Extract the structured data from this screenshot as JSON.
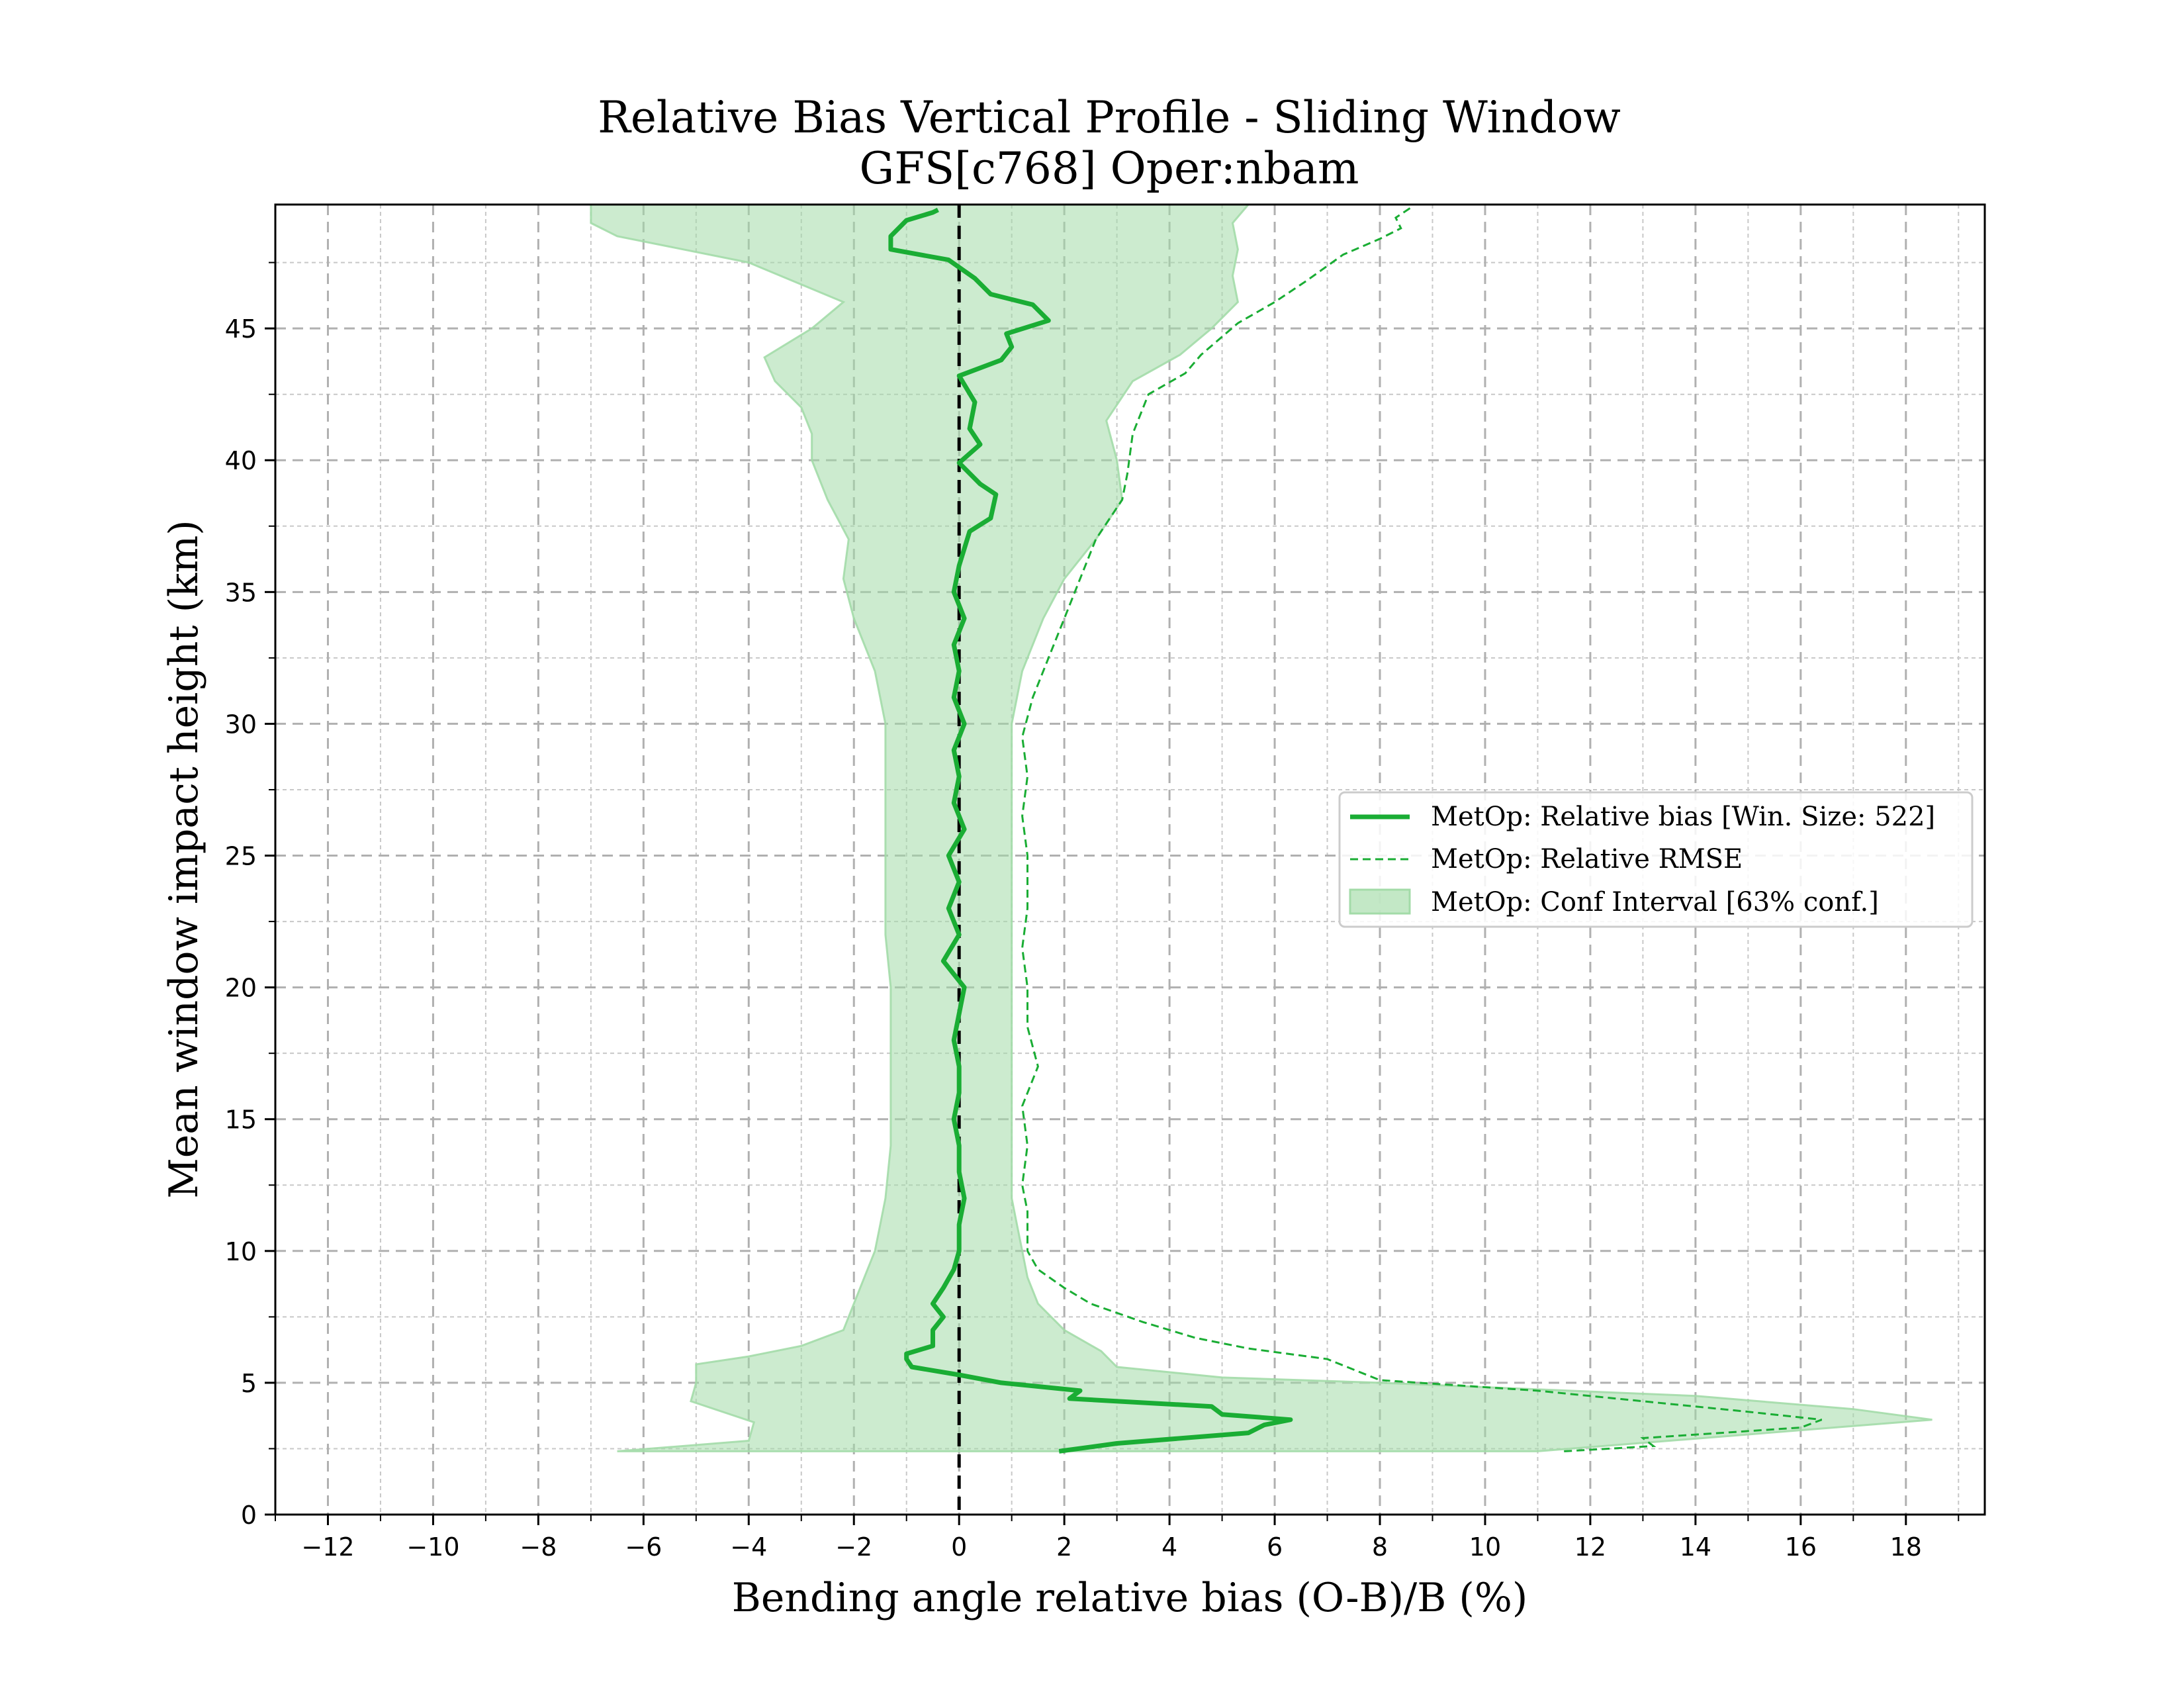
{
  "chart_data": {
    "type": "line",
    "title": "Relative Bias Vertical Profile - Sliding Window",
    "subtitle": "GFS[c768] Oper:nbam",
    "xlabel": "Bending angle relative bias (O-B)/B (%)",
    "ylabel": "Mean window impact height (km)",
    "xlim": [
      -13,
      19.5
    ],
    "ylim": [
      0,
      49.7
    ],
    "x_ticks": [
      -12,
      -10,
      -8,
      -6,
      -4,
      -2,
      0,
      2,
      4,
      6,
      8,
      10,
      12,
      14,
      16,
      18
    ],
    "x_tick_labels": [
      "−12",
      "−10",
      "−8",
      "−6",
      "−4",
      "−2",
      "0",
      "2",
      "4",
      "6",
      "8",
      "10",
      "12",
      "14",
      "16",
      "18"
    ],
    "y_ticks": [
      0,
      5,
      10,
      15,
      20,
      25,
      30,
      35,
      40,
      45
    ],
    "y_tick_labels": [
      "0",
      "5",
      "10",
      "15",
      "20",
      "25",
      "30",
      "35",
      "40",
      "45"
    ],
    "grid": true,
    "legend_position": "center-right",
    "zero_line": 0,
    "colors": {
      "bias": "#1aad34",
      "rmse": "#1aad34",
      "ci_fill": "#a3dba8",
      "zero_line": "#000000",
      "grid_major": "#b0b0b0",
      "grid_minor": "#c8c8c8"
    },
    "series": [
      {
        "name": "MetOp: Relative bias [Win. Size: 522]",
        "style": "solid",
        "points": [
          [
            1.9,
            2.4
          ],
          [
            3.0,
            2.7
          ],
          [
            5.5,
            3.1
          ],
          [
            5.8,
            3.4
          ],
          [
            6.3,
            3.6
          ],
          [
            5.0,
            3.8
          ],
          [
            4.8,
            4.1
          ],
          [
            2.1,
            4.4
          ],
          [
            2.3,
            4.7
          ],
          [
            0.8,
            5.0
          ],
          [
            0.0,
            5.3
          ],
          [
            -0.9,
            5.6
          ],
          [
            -1.0,
            5.9
          ],
          [
            -1.0,
            6.1
          ],
          [
            -0.5,
            6.4
          ],
          [
            -0.5,
            7.0
          ],
          [
            -0.3,
            7.5
          ],
          [
            -0.5,
            8.0
          ],
          [
            -0.3,
            8.6
          ],
          [
            -0.1,
            9.3
          ],
          [
            0.0,
            10.0
          ],
          [
            0.0,
            11.0
          ],
          [
            0.1,
            12.0
          ],
          [
            0.0,
            13.0
          ],
          [
            0.0,
            14.0
          ],
          [
            -0.1,
            15.0
          ],
          [
            0.0,
            16.0
          ],
          [
            0.0,
            17.0
          ],
          [
            -0.1,
            18.0
          ],
          [
            0.0,
            19.0
          ],
          [
            0.1,
            20.0
          ],
          [
            -0.3,
            21.0
          ],
          [
            0.0,
            22.0
          ],
          [
            -0.2,
            23.0
          ],
          [
            0.0,
            24.0
          ],
          [
            -0.2,
            25.0
          ],
          [
            0.1,
            26.0
          ],
          [
            -0.1,
            27.0
          ],
          [
            0.0,
            28.0
          ],
          [
            -0.1,
            29.0
          ],
          [
            0.1,
            30.0
          ],
          [
            -0.1,
            31.0
          ],
          [
            0.0,
            32.0
          ],
          [
            -0.1,
            33.0
          ],
          [
            0.1,
            34.0
          ],
          [
            -0.1,
            35.0
          ],
          [
            0.0,
            36.0
          ],
          [
            0.2,
            37.3
          ],
          [
            0.6,
            37.8
          ],
          [
            0.7,
            38.7
          ],
          [
            0.4,
            39.1
          ],
          [
            0.0,
            39.9
          ],
          [
            0.4,
            40.6
          ],
          [
            0.2,
            41.2
          ],
          [
            0.3,
            42.2
          ],
          [
            0.0,
            43.2
          ],
          [
            0.8,
            43.8
          ],
          [
            1.0,
            44.3
          ],
          [
            0.9,
            44.8
          ],
          [
            1.7,
            45.3
          ],
          [
            1.4,
            45.9
          ],
          [
            0.6,
            46.3
          ],
          [
            0.3,
            46.9
          ],
          [
            -0.2,
            47.6
          ],
          [
            -1.3,
            48.0
          ],
          [
            -1.3,
            48.5
          ],
          [
            -1.0,
            49.1
          ],
          [
            -0.5,
            49.4
          ],
          [
            -0.4,
            49.5
          ]
        ]
      },
      {
        "name": "MetOp: Relative RMSE",
        "style": "dashed",
        "points": [
          [
            11.5,
            2.4
          ],
          [
            13.2,
            2.6
          ],
          [
            13.0,
            2.9
          ],
          [
            16.0,
            3.3
          ],
          [
            16.4,
            3.6
          ],
          [
            15.0,
            3.9
          ],
          [
            13.0,
            4.3
          ],
          [
            11.0,
            4.7
          ],
          [
            8.0,
            5.1
          ],
          [
            7.0,
            5.9
          ],
          [
            5.5,
            6.3
          ],
          [
            4.5,
            6.7
          ],
          [
            3.5,
            7.3
          ],
          [
            2.5,
            8.0
          ],
          [
            2.0,
            8.6
          ],
          [
            1.5,
            9.3
          ],
          [
            1.3,
            10.0
          ],
          [
            1.3,
            11.5
          ],
          [
            1.2,
            12.5
          ],
          [
            1.3,
            14.0
          ],
          [
            1.2,
            15.5
          ],
          [
            1.5,
            17.0
          ],
          [
            1.3,
            18.5
          ],
          [
            1.3,
            20.0
          ],
          [
            1.2,
            21.5
          ],
          [
            1.3,
            23.0
          ],
          [
            1.3,
            25.0
          ],
          [
            1.2,
            26.5
          ],
          [
            1.3,
            28.0
          ],
          [
            1.2,
            29.5
          ],
          [
            1.4,
            31.0
          ],
          [
            1.7,
            32.5
          ],
          [
            2.0,
            34.0
          ],
          [
            2.3,
            35.5
          ],
          [
            2.6,
            37.0
          ],
          [
            3.1,
            38.5
          ],
          [
            3.2,
            39.5
          ],
          [
            3.3,
            41.0
          ],
          [
            3.6,
            42.5
          ],
          [
            4.3,
            43.3
          ],
          [
            4.6,
            44.0
          ],
          [
            5.3,
            45.2
          ],
          [
            6.0,
            46.0
          ],
          [
            6.6,
            46.8
          ],
          [
            7.3,
            47.8
          ],
          [
            8.0,
            48.4
          ],
          [
            8.4,
            48.8
          ],
          [
            8.3,
            49.2
          ],
          [
            8.6,
            49.6
          ]
        ]
      }
    ],
    "confidence_band": {
      "name": "MetOp: Conf Interval [63% conf.]",
      "confidence": "63%",
      "lower": [
        [
          -6.5,
          2.4
        ],
        [
          -4.0,
          2.8
        ],
        [
          -3.9,
          3.5
        ],
        [
          -5.1,
          4.3
        ],
        [
          -5.0,
          5.0
        ],
        [
          -5.0,
          5.7
        ],
        [
          -4.0,
          6.0
        ],
        [
          -3.0,
          6.4
        ],
        [
          -2.2,
          7.0
        ],
        [
          -2.0,
          8.0
        ],
        [
          -1.8,
          9.0
        ],
        [
          -1.6,
          10.0
        ],
        [
          -1.5,
          11.0
        ],
        [
          -1.4,
          12.0
        ],
        [
          -1.3,
          14.0
        ],
        [
          -1.3,
          16.0
        ],
        [
          -1.3,
          18.0
        ],
        [
          -1.3,
          20.0
        ],
        [
          -1.4,
          22.0
        ],
        [
          -1.4,
          24.0
        ],
        [
          -1.4,
          26.0
        ],
        [
          -1.4,
          28.0
        ],
        [
          -1.4,
          30.0
        ],
        [
          -1.6,
          32.0
        ],
        [
          -2.0,
          34.0
        ],
        [
          -2.2,
          35.5
        ],
        [
          -2.1,
          37.0
        ],
        [
          -2.5,
          38.5
        ],
        [
          -2.8,
          40.0
        ],
        [
          -2.8,
          41.0
        ],
        [
          -3.0,
          42.0
        ],
        [
          -3.5,
          43.0
        ],
        [
          -3.7,
          43.9
        ],
        [
          -2.8,
          45.0
        ],
        [
          -2.2,
          46.0
        ],
        [
          -4.0,
          47.5
        ],
        [
          -6.5,
          48.5
        ],
        [
          -7.0,
          49.0
        ],
        [
          -7.0,
          49.7
        ]
      ],
      "upper": [
        [
          11.0,
          2.4
        ],
        [
          18.5,
          3.6
        ],
        [
          17.0,
          4.0
        ],
        [
          14.0,
          4.5
        ],
        [
          8.0,
          5.0
        ],
        [
          5.0,
          5.2
        ],
        [
          3.0,
          5.6
        ],
        [
          2.7,
          6.2
        ],
        [
          2.0,
          7.0
        ],
        [
          1.5,
          8.0
        ],
        [
          1.3,
          9.0
        ],
        [
          1.2,
          10.0
        ],
        [
          1.1,
          11.0
        ],
        [
          1.0,
          12.0
        ],
        [
          1.0,
          14.0
        ],
        [
          1.0,
          16.0
        ],
        [
          1.0,
          18.0
        ],
        [
          1.0,
          20.0
        ],
        [
          1.0,
          22.0
        ],
        [
          1.0,
          24.0
        ],
        [
          1.0,
          26.0
        ],
        [
          1.0,
          28.0
        ],
        [
          1.0,
          30.0
        ],
        [
          1.2,
          32.0
        ],
        [
          1.6,
          34.0
        ],
        [
          2.0,
          35.5
        ],
        [
          2.6,
          37.0
        ],
        [
          3.1,
          38.5
        ],
        [
          3.0,
          40.0
        ],
        [
          2.8,
          41.5
        ],
        [
          3.3,
          43.0
        ],
        [
          4.2,
          44.0
        ],
        [
          4.8,
          45.0
        ],
        [
          5.3,
          46.0
        ],
        [
          5.2,
          47.0
        ],
        [
          5.3,
          48.0
        ],
        [
          5.2,
          49.0
        ],
        [
          5.5,
          49.7
        ]
      ]
    }
  }
}
